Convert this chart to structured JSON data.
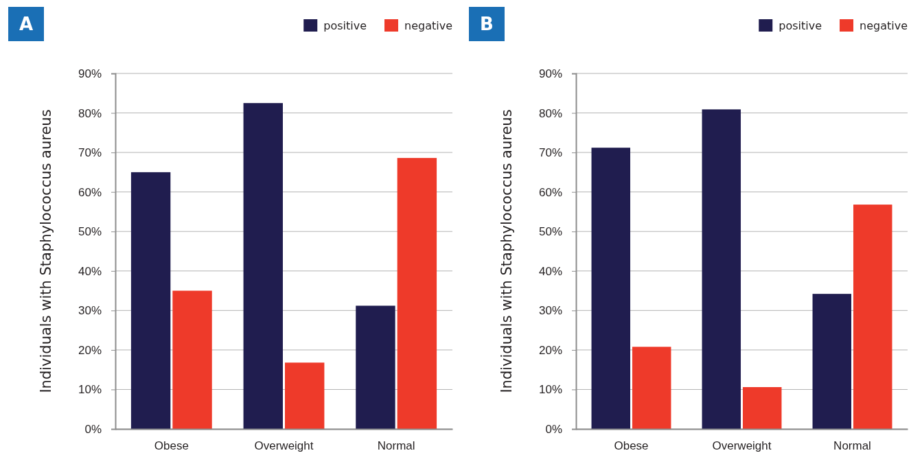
{
  "chart_data": [
    {
      "type": "bar",
      "title": "A",
      "ylabel": "Individuals with Staphylococcus aureus",
      "categories": [
        "Obese",
        "Overweight",
        "Normal"
      ],
      "series": [
        {
          "name": "positive",
          "color": "#201d4f",
          "values": [
            65,
            82.5,
            31.2
          ]
        },
        {
          "name": "negative",
          "color": "#ee3a2a",
          "values": [
            35,
            16.8,
            68.6
          ]
        }
      ],
      "ylim": [
        0,
        90
      ],
      "yticks": [
        {
          "value": 0,
          "label": "0%"
        },
        {
          "value": 10,
          "label": "10%"
        },
        {
          "value": 20,
          "label": "20%"
        },
        {
          "value": 30,
          "label": "30%"
        },
        {
          "value": 40,
          "label": "40%"
        },
        {
          "value": 50,
          "label": "50%"
        },
        {
          "value": 60,
          "label": "60%"
        },
        {
          "value": 70,
          "label": "70%"
        },
        {
          "value": 80,
          "label": "80%"
        },
        {
          "value": 90,
          "label": "90%"
        }
      ],
      "grid": "y",
      "legend": "top right"
    },
    {
      "type": "bar",
      "title": "B",
      "ylabel": "Individuals with Staphylococcus aureus",
      "categories": [
        "Obese",
        "Overweight",
        "Normal"
      ],
      "series": [
        {
          "name": "positive",
          "color": "#201d4f",
          "values": [
            71.2,
            80.9,
            34.2
          ]
        },
        {
          "name": "negative",
          "color": "#ee3a2a",
          "values": [
            20.8,
            10.6,
            56.8
          ]
        }
      ],
      "ylim": [
        0,
        90
      ],
      "yticks": [
        {
          "value": 0,
          "label": "0%"
        },
        {
          "value": 10,
          "label": "10%"
        },
        {
          "value": 20,
          "label": "20%"
        },
        {
          "value": 30,
          "label": "30%"
        },
        {
          "value": 40,
          "label": "40%"
        },
        {
          "value": 50,
          "label": "50%"
        },
        {
          "value": 60,
          "label": "60%"
        },
        {
          "value": 70,
          "label": "70%"
        },
        {
          "value": 80,
          "label": "80%"
        },
        {
          "value": 90,
          "label": "90%"
        }
      ],
      "grid": "y",
      "legend": "top right"
    }
  ]
}
